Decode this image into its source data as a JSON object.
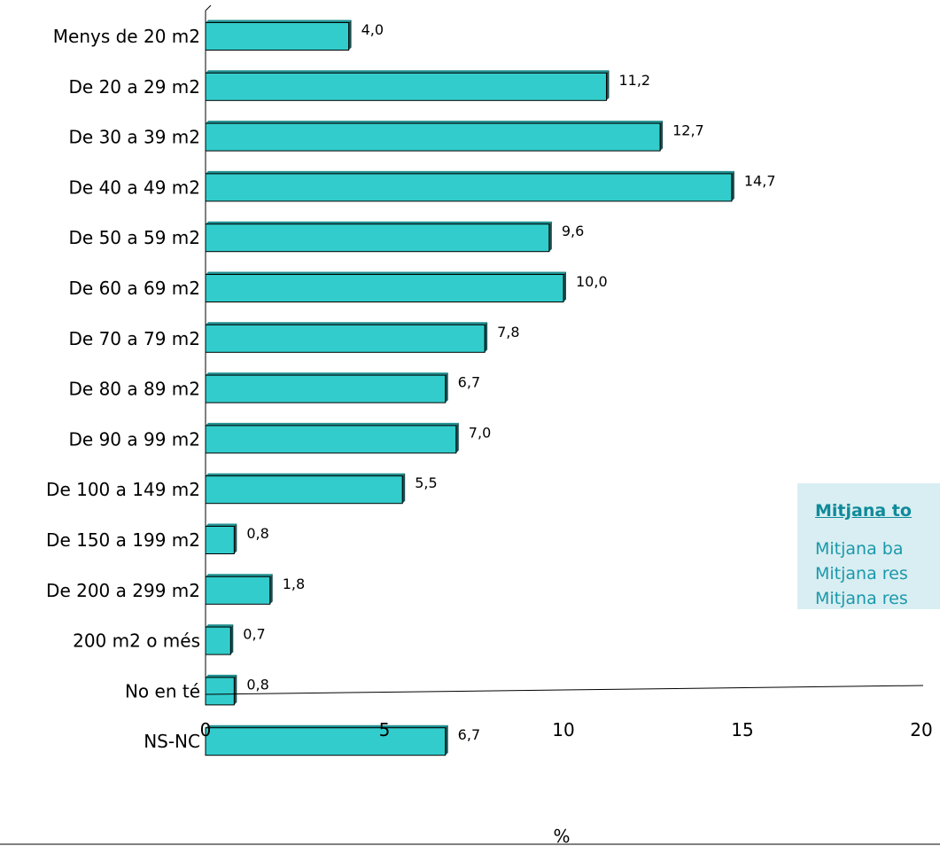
{
  "chart_data": {
    "type": "bar",
    "orientation": "horizontal",
    "categories": [
      "Menys de 20 m2",
      "De 20 a 29 m2",
      "De 30 a 39 m2",
      "De 40 a 49 m2",
      "De 50 a 59 m2",
      "De 60 a 69 m2",
      "De 70 a 79 m2",
      "De 80 a 89 m2",
      "De 90 a 99 m2",
      "De 100 a 149 m2",
      "De 150 a 199 m2",
      "De 200 a 299 m2",
      "200 m2 o més",
      "No en té",
      "NS-NC"
    ],
    "values": [
      4.0,
      11.2,
      12.7,
      14.7,
      9.6,
      10.0,
      7.8,
      6.7,
      7.0,
      5.5,
      0.8,
      1.8,
      0.7,
      0.8,
      6.7
    ],
    "value_labels": [
      "4,0",
      "11,2",
      "12,7",
      "14,7",
      "9,6",
      "10,0",
      "7,8",
      "6,7",
      "7,0",
      "5,5",
      "0,8",
      "1,8",
      "0,7",
      "0,8",
      "6,7"
    ],
    "xticks": [
      0,
      5,
      10,
      15,
      20
    ],
    "xlim": [
      0,
      20
    ],
    "xlabel": "%",
    "ylabel": "",
    "title": "",
    "bar_color": "#33cccc",
    "grid": false,
    "legend": false
  },
  "info_box": {
    "title": "Mitjana to",
    "lines": [
      "Mitjana ba",
      "Mitjana res",
      "Mitjana res"
    ],
    "background": "#d9eef2",
    "title_color": "#0f8a9a",
    "text_color": "#1a98aa"
  }
}
